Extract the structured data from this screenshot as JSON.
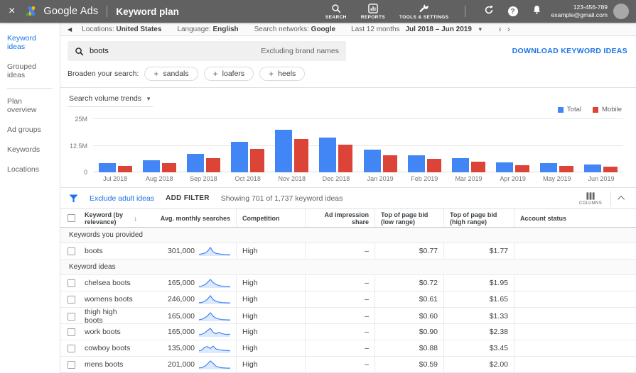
{
  "appbar": {
    "close_label": "×",
    "product": "Google Ads",
    "page_title": "Keyword plan",
    "nav": [
      {
        "label": "SEARCH",
        "icon": "search-icon"
      },
      {
        "label": "REPORTS",
        "icon": "reports-icon"
      },
      {
        "label": "TOOLS & SETTINGS",
        "icon": "wrench-icon"
      }
    ],
    "help_glyph": "?",
    "account_id": "123-456-789",
    "account_email": "example@gmail.com"
  },
  "sidebar": {
    "items": [
      {
        "label": "Keyword ideas",
        "selected": true
      },
      {
        "label": "Grouped ideas",
        "selected": false
      },
      {
        "label": "Plan overview",
        "selected": false
      },
      {
        "label": "Ad groups",
        "selected": false
      },
      {
        "label": "Keywords",
        "selected": false
      },
      {
        "label": "Locations",
        "selected": false
      }
    ],
    "divider_after_index": 1
  },
  "filterbar": {
    "locations_label": "Locations:",
    "locations_value": "United States",
    "language_label": "Language:",
    "language_value": "English",
    "networks_label": "Search networks:",
    "networks_value": "Google",
    "range_label": "Last 12 months",
    "range_value": "Jul 2018 – Jun 2019"
  },
  "search": {
    "query": "boots",
    "exclusion": "Excluding brand names",
    "download_label": "DOWNLOAD KEYWORD IDEAS"
  },
  "broaden": {
    "label": "Broaden your search:",
    "chips": [
      "sandals",
      "loafers",
      "heels"
    ]
  },
  "chart_data": {
    "type": "bar",
    "title": "Search volume trends",
    "categories": [
      "Jul 2018",
      "Aug 2018",
      "Sep 2018",
      "Oct 2018",
      "Nov 2018",
      "Dec 2018",
      "Jan 2019",
      "Feb 2019",
      "Mar 2019",
      "Apr 2019",
      "May 2019",
      "Jun 2019"
    ],
    "series": [
      {
        "name": "Total",
        "color": "#4285f4",
        "values": [
          4.2,
          5.5,
          8.7,
          14.0,
          19.8,
          16.0,
          10.5,
          8.0,
          6.5,
          4.6,
          4.3,
          3.5
        ]
      },
      {
        "name": "Mobile",
        "color": "#db4437",
        "values": [
          2.8,
          4.2,
          6.5,
          10.8,
          15.5,
          12.8,
          8.0,
          6.2,
          5.0,
          3.3,
          2.9,
          2.7
        ]
      }
    ],
    "unit": "M (millions of searches)",
    "ylim": [
      0,
      25
    ],
    "yticks": [
      "25M",
      "12.5M",
      "0"
    ],
    "grid": true,
    "legend_position": "top-right"
  },
  "toolbar": {
    "exclude_label": "Exclude adult ideas",
    "add_filter_label": "ADD FILTER",
    "showing_text": "Showing 701 of 1,737 keyword ideas",
    "columns_label": "COLUMNS"
  },
  "table": {
    "columns": [
      "Keyword (by relevance)",
      "Avg. monthly searches",
      "Competition",
      "Ad impression share",
      "Top of page bid (low range)",
      "Top of page bid (high range)",
      "Account status"
    ],
    "sort_column": "Keyword (by relevance)",
    "sections": [
      {
        "label": "Keywords you provided",
        "rows": [
          {
            "keyword": "boots",
            "avg_monthly_searches": "301,000",
            "competition": "High",
            "ad_impression_share": "–",
            "bid_low": "$0.77",
            "bid_high": "$1.77",
            "account_status": "",
            "spark": [
              0.12,
              0.18,
              0.28,
              0.5,
              1,
              0.45,
              0.25,
              0.18,
              0.14,
              0.1,
              0.08,
              0.08
            ]
          }
        ]
      },
      {
        "label": "Keyword ideas",
        "rows": [
          {
            "keyword": "chelsea boots",
            "avg_monthly_searches": "165,000",
            "competition": "High",
            "ad_impression_share": "–",
            "bid_low": "$0.72",
            "bid_high": "$1.95",
            "account_status": "",
            "spark": [
              0.1,
              0.15,
              0.3,
              0.6,
              1,
              0.6,
              0.35,
              0.22,
              0.14,
              0.1,
              0.08,
              0.08
            ]
          },
          {
            "keyword": "womens boots",
            "avg_monthly_searches": "246,000",
            "competition": "High",
            "ad_impression_share": "–",
            "bid_low": "$0.61",
            "bid_high": "$1.65",
            "account_status": "",
            "spark": [
              0.1,
              0.14,
              0.28,
              0.55,
              1,
              0.5,
              0.28,
              0.18,
              0.12,
              0.1,
              0.08,
              0.08
            ]
          },
          {
            "keyword": "thigh high boots",
            "avg_monthly_searches": "165,000",
            "competition": "High",
            "ad_impression_share": "–",
            "bid_low": "$0.60",
            "bid_high": "$1.33",
            "account_status": "",
            "spark": [
              0.1,
              0.16,
              0.34,
              0.6,
              1,
              0.55,
              0.3,
              0.2,
              0.12,
              0.1,
              0.08,
              0.08
            ]
          },
          {
            "keyword": "work boots",
            "avg_monthly_searches": "165,000",
            "competition": "High",
            "ad_impression_share": "–",
            "bid_low": "$0.90",
            "bid_high": "$2.38",
            "account_status": "",
            "spark": [
              0.2,
              0.25,
              0.42,
              0.72,
              1,
              0.5,
              0.3,
              0.48,
              0.35,
              0.25,
              0.22,
              0.25
            ]
          },
          {
            "keyword": "cowboy boots",
            "avg_monthly_searches": "135,000",
            "competition": "High",
            "ad_impression_share": "–",
            "bid_low": "$0.88",
            "bid_high": "$3.45",
            "account_status": "",
            "spark": [
              0.2,
              0.3,
              0.68,
              0.75,
              0.5,
              0.8,
              0.45,
              0.35,
              0.3,
              0.26,
              0.24,
              0.22
            ]
          },
          {
            "keyword": "mens boots",
            "avg_monthly_searches": "201,000",
            "competition": "High",
            "ad_impression_share": "–",
            "bid_low": "$0.59",
            "bid_high": "$2.00",
            "account_status": "",
            "spark": [
              0.1,
              0.15,
              0.3,
              0.62,
              1,
              0.7,
              0.32,
              0.2,
              0.13,
              0.1,
              0.08,
              0.08
            ]
          }
        ]
      }
    ]
  },
  "colors": {
    "appbar_bg": "#616161",
    "accent_blue": "#1a73e8",
    "series_total": "#4285f4",
    "series_mobile": "#db4437"
  }
}
